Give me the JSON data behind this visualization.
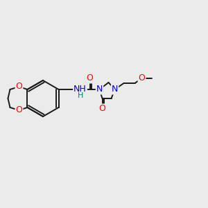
{
  "background_color": "#ebebeb",
  "bond_color": "#1a1a1a",
  "atom_colors": {
    "O": "#ff0000",
    "N": "#0000cc",
    "H": "#008080"
  },
  "lw": 1.4,
  "fs": 9.0
}
